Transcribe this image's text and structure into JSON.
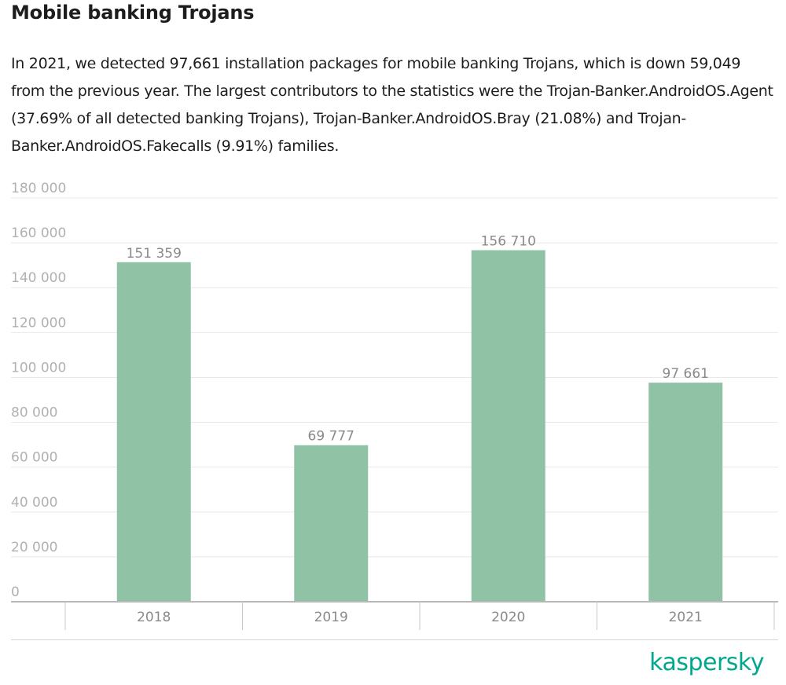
{
  "page": {
    "title": "Mobile banking Trojans",
    "intro": "In 2021, we detected 97,661 installation packages for mobile banking Trojans, which is down 59,049 from the previous year. The largest contributors to the statistics were the Trojan-Banker.AndroidOS.Agent (37.69% of all detected banking Trojans), Trojan-Banker.AndroidOS.Bray (21.08%) and Trojan-Banker.AndroidOS.Fakecalls (9.91%) families."
  },
  "brand": {
    "logo_text": "kaspersky",
    "color": "#00a88e"
  },
  "chart_data": {
    "type": "bar",
    "categories": [
      "2018",
      "2019",
      "2020",
      "2021"
    ],
    "values": [
      151359,
      69777,
      156710,
      97661
    ],
    "value_labels": [
      "151 359",
      "69 777",
      "156 710",
      "97 661"
    ],
    "ylim": [
      0,
      180000
    ],
    "yticks": [
      0,
      20000,
      40000,
      60000,
      80000,
      100000,
      120000,
      140000,
      160000,
      180000
    ],
    "ytick_labels": [
      "0",
      "20 000",
      "40 000",
      "60 000",
      "80 000",
      "100 000",
      "120 000",
      "140 000",
      "160 000",
      "180 000"
    ],
    "bar_color": "#90c2a5",
    "grid": true,
    "legend": "none"
  }
}
